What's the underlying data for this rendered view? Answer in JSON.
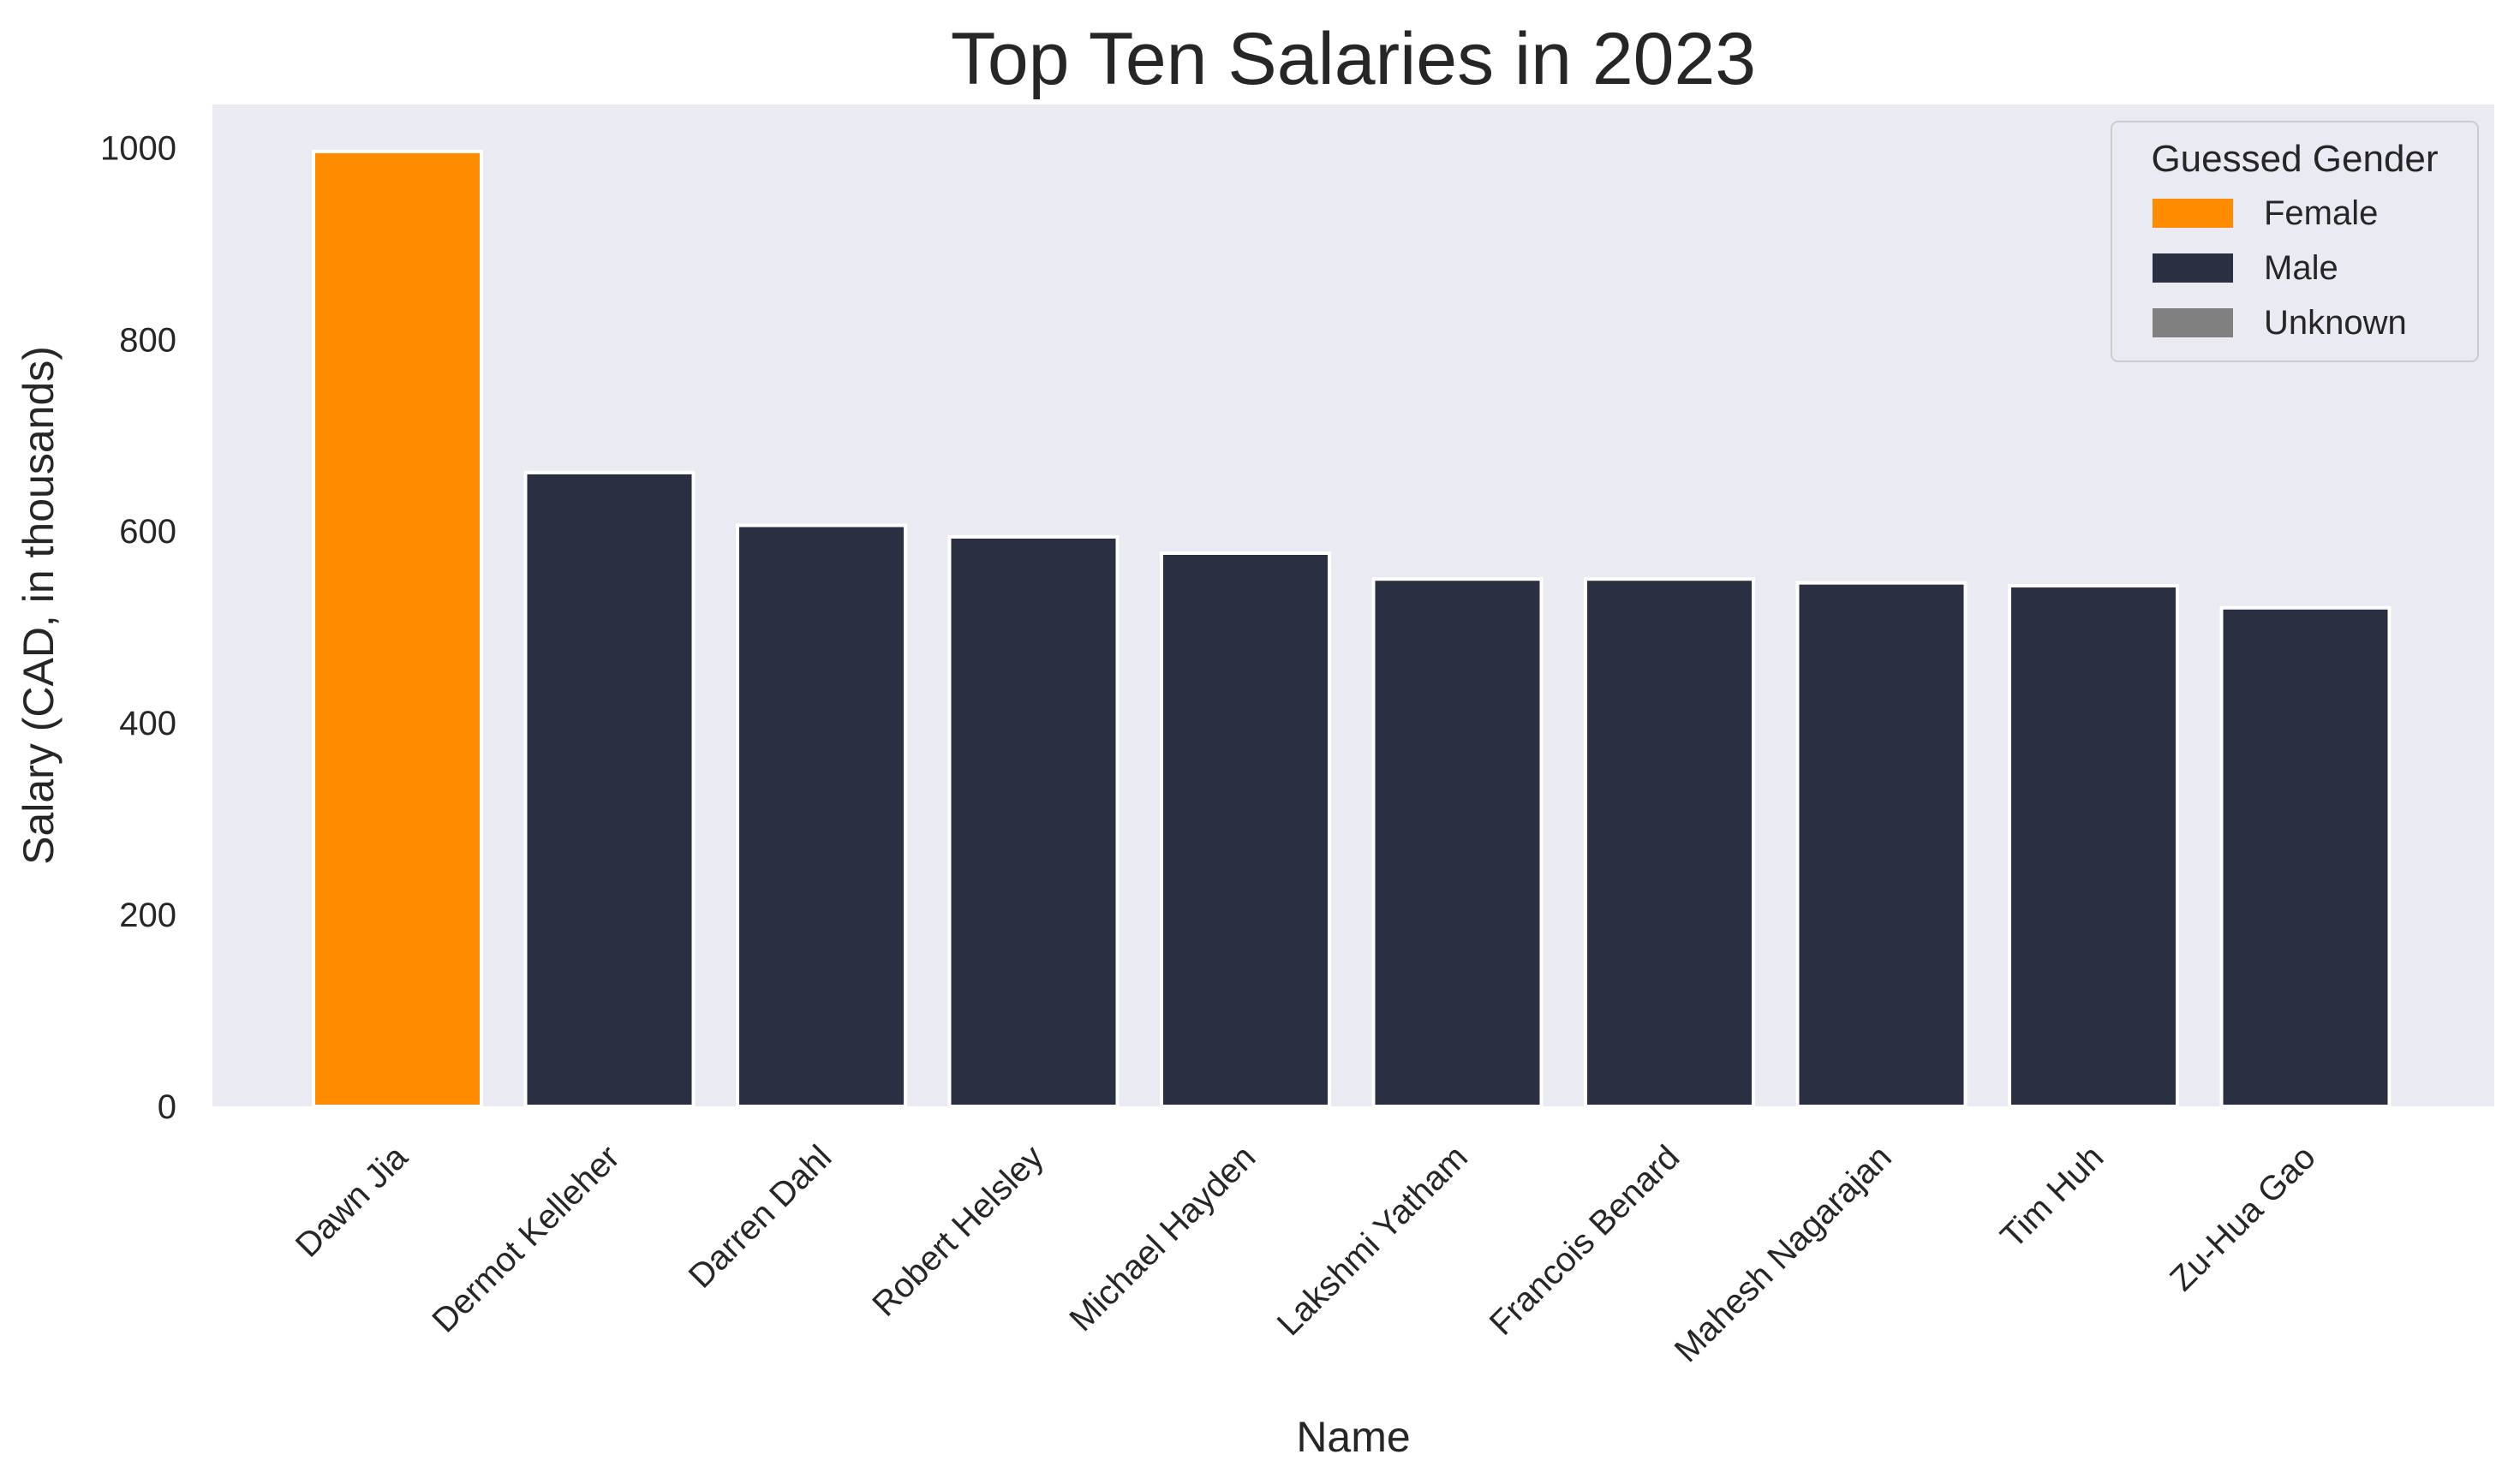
{
  "chart_data": {
    "type": "bar",
    "title": "Top Ten Salaries in 2023",
    "xlabel": "Name",
    "ylabel": "Salary (CAD, in thousands)",
    "ylim": [
      0,
      1045
    ],
    "yticks": [
      0,
      200,
      400,
      600,
      800,
      1000
    ],
    "grid": false,
    "categories": [
      "Dawn Jia",
      "Dermot Kelleher",
      "Darren Dahl",
      "Robert Helsley",
      "Michael Hayden",
      "Lakshmi Yatham",
      "Francois Benard",
      "Mahesh Nagarajan",
      "Tim Huh",
      "Zu-Hua Gao"
    ],
    "values": [
      996,
      661,
      606,
      594,
      577,
      550,
      550,
      546,
      543,
      520
    ],
    "bar_groups": [
      "Female",
      "Male",
      "Male",
      "Male",
      "Male",
      "Male",
      "Male",
      "Male",
      "Male",
      "Male"
    ],
    "legend": {
      "title": "Guessed Gender",
      "position": "top-right",
      "entries": [
        {
          "label": "Female",
          "color": "#ff8c00"
        },
        {
          "label": "Male",
          "color": "#2b2f42"
        },
        {
          "label": "Unknown",
          "color": "#808080"
        }
      ]
    },
    "plot_background": "#eaeaf2"
  }
}
